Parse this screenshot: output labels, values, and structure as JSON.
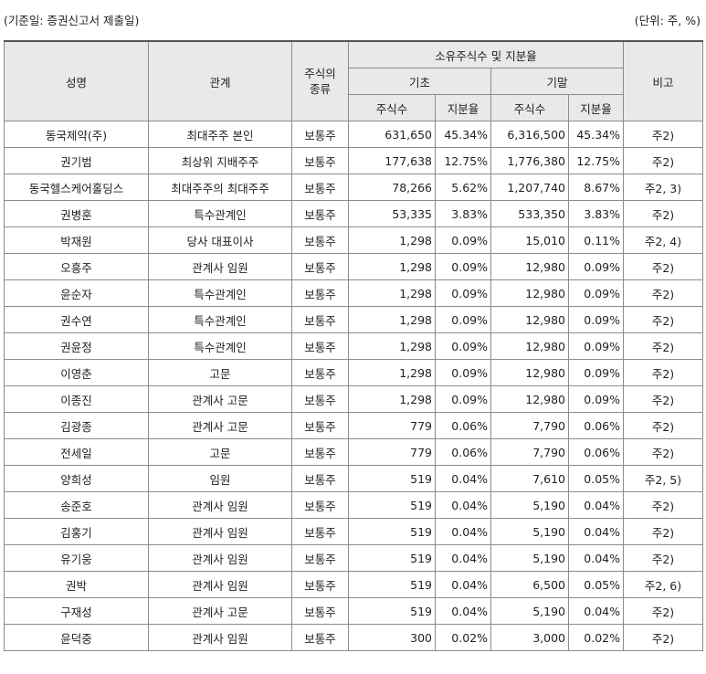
{
  "caption": {
    "basis": "(기준일: 증권신고서 제출일)",
    "unit": "(단위: 주, %)"
  },
  "headers": {
    "name": "성명",
    "relation": "관계",
    "stock_type": "주식의\n종류",
    "ownership_group": "소유주식수 및 지분율",
    "period_start": "기초",
    "period_end": "기말",
    "shares": "주식수",
    "ratio": "지분율",
    "note": "비고"
  },
  "rows": [
    {
      "name": "동국제약(주)",
      "relation": "최대주주 본인",
      "type": "보통주",
      "start_shares": "631,650",
      "start_ratio": "45.34%",
      "end_shares": "6,316,500",
      "end_ratio": "45.34%",
      "note": "주2)"
    },
    {
      "name": "권기범",
      "relation": "최상위 지배주주",
      "type": "보통주",
      "start_shares": "177,638",
      "start_ratio": "12.75%",
      "end_shares": "1,776,380",
      "end_ratio": "12.75%",
      "note": "주2)"
    },
    {
      "name": "동국헬스케어홀딩스",
      "relation": "최대주주의 최대주주",
      "type": "보통주",
      "start_shares": "78,266",
      "start_ratio": "5.62%",
      "end_shares": "1,207,740",
      "end_ratio": "8.67%",
      "note": "주2, 3)"
    },
    {
      "name": "권병훈",
      "relation": "특수관계인",
      "type": "보통주",
      "start_shares": "53,335",
      "start_ratio": "3.83%",
      "end_shares": "533,350",
      "end_ratio": "3.83%",
      "note": "주2)"
    },
    {
      "name": "박재원",
      "relation": "당사 대표이사",
      "type": "보통주",
      "start_shares": "1,298",
      "start_ratio": "0.09%",
      "end_shares": "15,010",
      "end_ratio": "0.11%",
      "note": "주2, 4)"
    },
    {
      "name": "오흥주",
      "relation": "관계사 임원",
      "type": "보통주",
      "start_shares": "1,298",
      "start_ratio": "0.09%",
      "end_shares": "12,980",
      "end_ratio": "0.09%",
      "note": "주2)"
    },
    {
      "name": "윤순자",
      "relation": "특수관계인",
      "type": "보통주",
      "start_shares": "1,298",
      "start_ratio": "0.09%",
      "end_shares": "12,980",
      "end_ratio": "0.09%",
      "note": "주2)"
    },
    {
      "name": "권수연",
      "relation": "특수관계인",
      "type": "보통주",
      "start_shares": "1,298",
      "start_ratio": "0.09%",
      "end_shares": "12,980",
      "end_ratio": "0.09%",
      "note": "주2)"
    },
    {
      "name": "권윤정",
      "relation": "특수관계인",
      "type": "보통주",
      "start_shares": "1,298",
      "start_ratio": "0.09%",
      "end_shares": "12,980",
      "end_ratio": "0.09%",
      "note": "주2)"
    },
    {
      "name": "이영춘",
      "relation": "고문",
      "type": "보통주",
      "start_shares": "1,298",
      "start_ratio": "0.09%",
      "end_shares": "12,980",
      "end_ratio": "0.09%",
      "note": "주2)"
    },
    {
      "name": "이종진",
      "relation": "관계사 고문",
      "type": "보통주",
      "start_shares": "1,298",
      "start_ratio": "0.09%",
      "end_shares": "12,980",
      "end_ratio": "0.09%",
      "note": "주2)"
    },
    {
      "name": "김광종",
      "relation": "관계사 고문",
      "type": "보통주",
      "start_shares": "779",
      "start_ratio": "0.06%",
      "end_shares": "7,790",
      "end_ratio": "0.06%",
      "note": "주2)"
    },
    {
      "name": "전세일",
      "relation": "고문",
      "type": "보통주",
      "start_shares": "779",
      "start_ratio": "0.06%",
      "end_shares": "7,790",
      "end_ratio": "0.06%",
      "note": "주2)"
    },
    {
      "name": "양희성",
      "relation": "임원",
      "type": "보통주",
      "start_shares": "519",
      "start_ratio": "0.04%",
      "end_shares": "7,610",
      "end_ratio": "0.05%",
      "note": "주2, 5)"
    },
    {
      "name": "송준호",
      "relation": "관계사 임원",
      "type": "보통주",
      "start_shares": "519",
      "start_ratio": "0.04%",
      "end_shares": "5,190",
      "end_ratio": "0.04%",
      "note": "주2)"
    },
    {
      "name": "김홍기",
      "relation": "관계사 임원",
      "type": "보통주",
      "start_shares": "519",
      "start_ratio": "0.04%",
      "end_shares": "5,190",
      "end_ratio": "0.04%",
      "note": "주2)"
    },
    {
      "name": "유기웅",
      "relation": "관계사 임원",
      "type": "보통주",
      "start_shares": "519",
      "start_ratio": "0.04%",
      "end_shares": "5,190",
      "end_ratio": "0.04%",
      "note": "주2)"
    },
    {
      "name": "권박",
      "relation": "관계사 임원",
      "type": "보통주",
      "start_shares": "519",
      "start_ratio": "0.04%",
      "end_shares": "6,500",
      "end_ratio": "0.05%",
      "note": "주2, 6)"
    },
    {
      "name": "구재성",
      "relation": "관계사 고문",
      "type": "보통주",
      "start_shares": "519",
      "start_ratio": "0.04%",
      "end_shares": "5,190",
      "end_ratio": "0.04%",
      "note": "주2)"
    },
    {
      "name": "윤덕중",
      "relation": "관계사 임원",
      "type": "보통주",
      "start_shares": "300",
      "start_ratio": "0.02%",
      "end_shares": "3,000",
      "end_ratio": "0.02%",
      "note": "주2)"
    }
  ]
}
